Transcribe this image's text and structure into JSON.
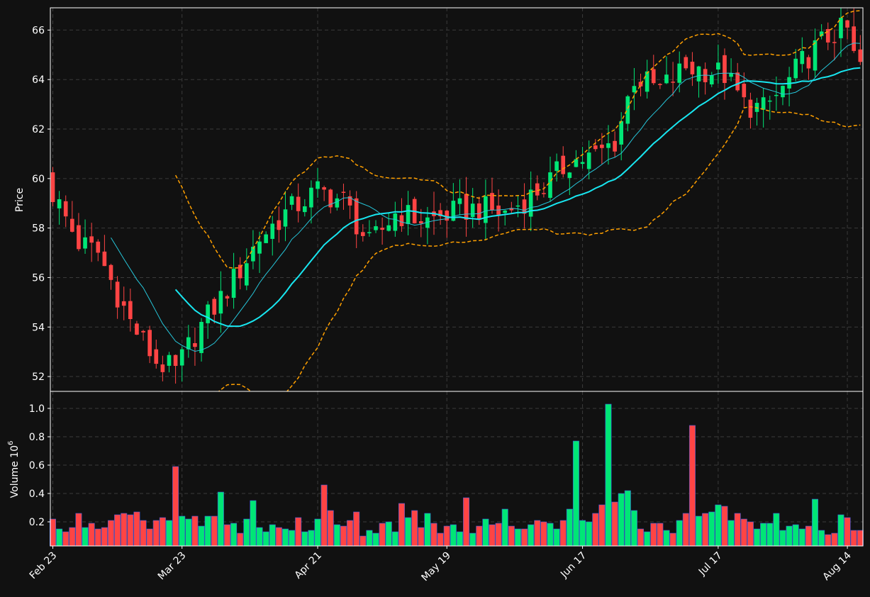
{
  "chart_data": {
    "type": "candlestick",
    "ylabel_price": "Price",
    "ylabel_volume": "Volume  10",
    "ylabel_volume_exp": "6",
    "x_tick_labels": [
      "Feb 23",
      "Mar 23",
      "Apr 21",
      "May 19",
      "Jun 17",
      "Jul 17",
      "Aug 14"
    ],
    "price_ylim": [
      51.4,
      66.9
    ],
    "price_yticks": [
      52,
      54,
      56,
      58,
      60,
      62,
      64,
      66
    ],
    "volume_ylim": [
      0.03,
      1.12
    ],
    "volume_yticks": [
      0.2,
      0.4,
      0.6,
      0.8,
      1.0
    ],
    "grid": true,
    "colors": {
      "up": "#00e676",
      "down": "#ff4444",
      "background": "#111111",
      "grid": "#3a3a3a",
      "sma_short": "#26c6da",
      "sma_long": "#18e6f0",
      "bollinger": "#ffa000"
    },
    "indicators": [
      "SMA (thin)",
      "SMA (thick)",
      "Bollinger upper",
      "Bollinger lower"
    ],
    "volume_pattern": [
      0.22,
      0.15,
      0.13,
      0.16,
      0.26,
      0.16,
      0.19,
      0.15,
      0.16,
      0.21,
      0.25,
      0.26,
      0.25,
      0.27,
      0.21,
      0.15,
      0.21,
      0.23,
      0.21,
      0.59,
      0.24,
      0.22,
      0.24,
      0.17,
      0.24,
      0.24,
      0.41,
      0.18,
      0.19,
      0.12,
      0.22,
      0.35,
      0.16,
      0.13,
      0.18,
      0.16,
      0.15,
      0.14,
      0.23,
      0.13,
      0.14,
      0.22,
      0.46,
      0.28,
      0.18,
      0.17,
      0.21,
      0.27,
      0.1,
      0.14,
      0.12,
      0.19,
      0.2,
      0.13,
      0.33,
      0.23,
      0.28,
      0.16,
      0.26,
      0.19,
      0.12,
      0.17,
      0.18,
      0.13,
      0.37,
      0.12,
      0.17,
      0.22,
      0.18,
      0.19,
      0.29,
      0.17,
      0.15,
      0.15,
      0.18,
      0.21,
      0.2,
      0.19,
      0.15,
      0.21,
      0.29,
      0.77,
      0.21,
      0.2,
      0.26,
      0.32,
      1.03,
      0.34,
      0.4,
      0.42,
      0.28,
      0.15,
      0.13,
      0.19,
      0.19,
      0.14,
      0.12,
      0.21,
      0.26,
      0.88,
      0.24,
      0.26,
      0.27,
      0.32,
      0.31,
      0.21,
      0.26,
      0.22,
      0.2,
      0.15,
      0.19,
      0.19,
      0.26,
      0.14,
      0.17,
      0.18,
      0.15,
      0.17,
      0.36,
      0.14,
      0.11,
      0.12,
      0.25,
      0.23,
      0.14,
      0.14
    ]
  }
}
